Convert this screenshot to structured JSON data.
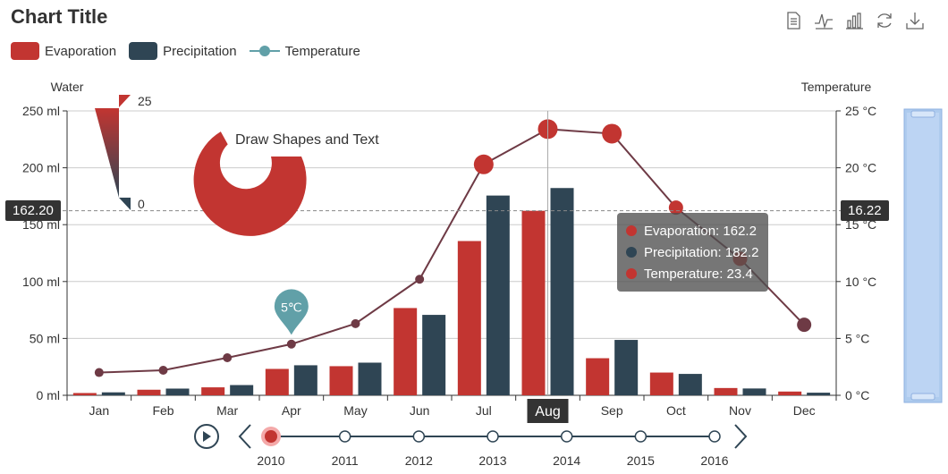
{
  "title": "Chart Title",
  "toolbox": [
    "data-view-icon",
    "line-chart-icon",
    "bar-chart-icon",
    "restore-icon",
    "save-image-icon"
  ],
  "legend": [
    {
      "name": "Evaporation",
      "color": "#c23531"
    },
    {
      "name": "Precipitation",
      "color": "#2f4554"
    },
    {
      "name": "Temperature",
      "color": "#61a0a8"
    }
  ],
  "chart_data": {
    "type": "bar",
    "categories": [
      "Jan",
      "Feb",
      "Mar",
      "Apr",
      "May",
      "Jun",
      "Jul",
      "Aug",
      "Sep",
      "Oct",
      "Nov",
      "Dec"
    ],
    "series": [
      {
        "name": "Evaporation",
        "type": "bar",
        "color": "#c23531",
        "values": [
          2.0,
          4.9,
          7.0,
          23.2,
          25.6,
          76.7,
          135.6,
          162.2,
          32.6,
          20.0,
          6.4,
          3.3
        ]
      },
      {
        "name": "Precipitation",
        "type": "bar",
        "color": "#2f4554",
        "values": [
          2.6,
          5.9,
          9.0,
          26.4,
          28.7,
          70.7,
          175.6,
          182.2,
          48.7,
          18.8,
          6.0,
          2.3
        ]
      },
      {
        "name": "Temperature",
        "type": "line",
        "color": "#6e3a45",
        "values": [
          2.0,
          2.2,
          3.3,
          4.5,
          6.3,
          10.2,
          20.3,
          23.4,
          23.0,
          16.5,
          12.0,
          6.2
        ]
      }
    ],
    "y_left": {
      "label": "Water",
      "ticks": [
        "0 ml",
        "50 ml",
        "100 ml",
        "150 ml",
        "200 ml",
        "250 ml"
      ],
      "range": [
        0,
        250
      ]
    },
    "y_right": {
      "label": "Temperature",
      "ticks": [
        "0 °C",
        "5 °C",
        "10 °C",
        "15 °C",
        "20 °C",
        "25 °C"
      ],
      "range": [
        0,
        25
      ]
    },
    "mark_point": {
      "label": "5℃",
      "category": "Apr",
      "value": 5
    },
    "visual_map": {
      "max_label": "25",
      "min_label": "0"
    },
    "graphic_text": "Draw Shapes and Text",
    "axis_pointer": {
      "category": "Aug",
      "left_value": "162.20",
      "right_value": "16.22"
    },
    "tooltip": [
      {
        "label": "Evaporation: 162.2",
        "color": "#c23531"
      },
      {
        "label": "Precipitation: 182.2",
        "color": "#2f4554"
      },
      {
        "label": "Temperature: 23.4",
        "color": "#c23531"
      }
    ],
    "timeline": {
      "years": [
        "2010",
        "2011",
        "2012",
        "2013",
        "2014",
        "2015",
        "2016"
      ],
      "current": "2010"
    }
  }
}
